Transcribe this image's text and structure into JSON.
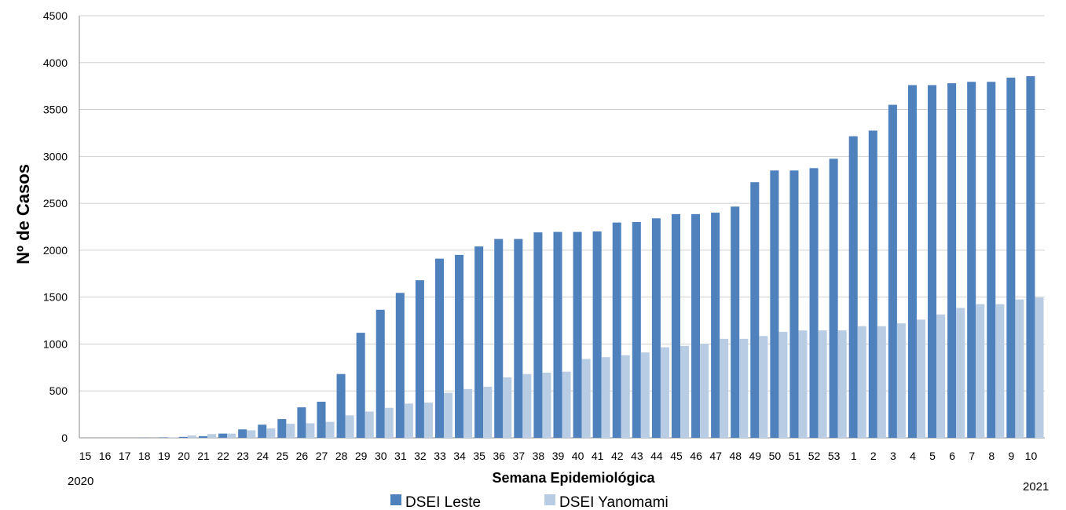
{
  "chart_data": {
    "type": "bar",
    "xlabel": "Semana Epidemiológica",
    "ylabel": "Nº de Casos",
    "ylim": [
      0,
      4500
    ],
    "yticks": [
      "0",
      "500",
      "1000",
      "1500",
      "2000",
      "2500",
      "3000",
      "3500",
      "4000",
      "4500"
    ],
    "year_labels": {
      "start": "2020",
      "end": "2021"
    },
    "grid": true,
    "legend_position": "bottom",
    "categories": [
      "15",
      "16",
      "17",
      "18",
      "19",
      "20",
      "21",
      "22",
      "23",
      "24",
      "25",
      "26",
      "27",
      "28",
      "29",
      "30",
      "31",
      "32",
      "33",
      "34",
      "35",
      "36",
      "37",
      "38",
      "39",
      "40",
      "41",
      "42",
      "43",
      "44",
      "45",
      "46",
      "47",
      "48",
      "49",
      "50",
      "51",
      "52",
      "53",
      "1",
      "2",
      "3",
      "4",
      "5",
      "6",
      "7",
      "8",
      "9",
      "10"
    ],
    "series": [
      {
        "name": "DSEI Leste",
        "color": "#4f81bd",
        "values": [
          0,
          0,
          0,
          2,
          5,
          10,
          18,
          45,
          90,
          140,
          200,
          325,
          385,
          680,
          1120,
          1365,
          1545,
          1680,
          1910,
          1950,
          2040,
          2120,
          2120,
          2190,
          2195,
          2195,
          2200,
          2295,
          2300,
          2340,
          2385,
          2385,
          2400,
          2465,
          2725,
          2850,
          2850,
          2875,
          2975,
          3215,
          3275,
          3550,
          3760,
          3760,
          3780,
          3795,
          3795,
          3840,
          3855
        ]
      },
      {
        "name": "DSEI Yanomami",
        "color": "#b8cce4",
        "values": [
          0,
          0,
          0,
          0,
          5,
          25,
          40,
          45,
          80,
          100,
          150,
          155,
          170,
          240,
          280,
          320,
          365,
          375,
          480,
          520,
          545,
          645,
          680,
          695,
          705,
          840,
          860,
          880,
          910,
          965,
          980,
          1000,
          1055,
          1055,
          1085,
          1130,
          1145,
          1145,
          1145,
          1190,
          1190,
          1220,
          1260,
          1315,
          1385,
          1425,
          1425,
          1475,
          1495
        ]
      }
    ]
  }
}
